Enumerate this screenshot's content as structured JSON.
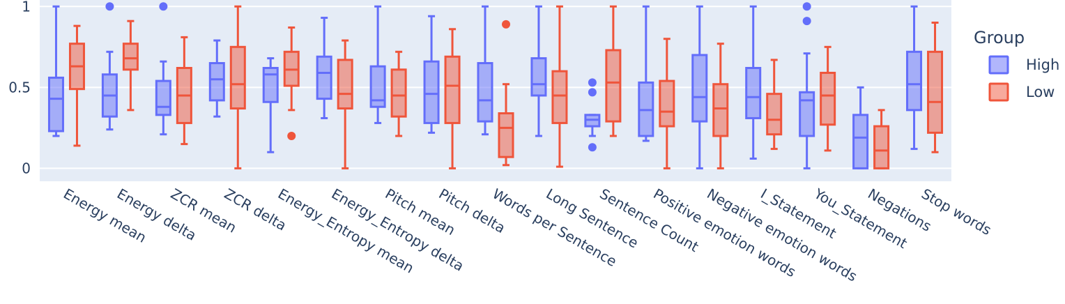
{
  "chart_data": {
    "type": "box",
    "title": "",
    "xlabel": "",
    "ylabel": "",
    "ylim": [
      -0.08,
      1.04
    ],
    "yticks": [
      0,
      0.5,
      1
    ],
    "ytick_labels": [
      "0",
      "0.5",
      "1"
    ],
    "grid": true,
    "legend": {
      "title": "Group",
      "position": "top-right"
    },
    "categories": [
      "Energy mean",
      "Energy delta",
      "ZCR mean",
      "ZCR delta",
      "Energy_Entropy mean",
      "Energy_Entropy delta",
      "Pitch mean",
      "Pitch delta",
      "Words per Sentence",
      "Long Sentence",
      "Sentence Count",
      "Positive emotion words",
      "Negative emotion words",
      "I_Statement",
      "You_Statement",
      "Negations",
      "Stop words"
    ],
    "series": [
      {
        "name": "High",
        "color": "#636efa",
        "fill": "rgba(99,110,250,0.5)",
        "boxes": [
          {
            "min": 0.2,
            "q1": 0.23,
            "median": 0.43,
            "q3": 0.56,
            "max": 1.0,
            "outliers": []
          },
          {
            "min": 0.24,
            "q1": 0.32,
            "median": 0.45,
            "q3": 0.58,
            "max": 0.72,
            "outliers": [
              1.0
            ]
          },
          {
            "min": 0.21,
            "q1": 0.33,
            "median": 0.38,
            "q3": 0.54,
            "max": 0.66,
            "outliers": [
              1.0
            ]
          },
          {
            "min": 0.32,
            "q1": 0.42,
            "median": 0.55,
            "q3": 0.65,
            "max": 0.79,
            "outliers": []
          },
          {
            "min": 0.1,
            "q1": 0.41,
            "median": 0.58,
            "q3": 0.62,
            "max": 0.68,
            "outliers": []
          },
          {
            "min": 0.31,
            "q1": 0.43,
            "median": 0.59,
            "q3": 0.69,
            "max": 0.93,
            "outliers": []
          },
          {
            "min": 0.28,
            "q1": 0.38,
            "median": 0.42,
            "q3": 0.63,
            "max": 1.0,
            "outliers": []
          },
          {
            "min": 0.22,
            "q1": 0.28,
            "median": 0.46,
            "q3": 0.66,
            "max": 0.94,
            "outliers": []
          },
          {
            "min": 0.21,
            "q1": 0.29,
            "median": 0.42,
            "q3": 0.65,
            "max": 1.0,
            "outliers": []
          },
          {
            "min": 0.2,
            "q1": 0.45,
            "median": 0.52,
            "q3": 0.68,
            "max": 1.0,
            "outliers": []
          },
          {
            "min": 0.2,
            "q1": 0.26,
            "median": 0.3,
            "q3": 0.33,
            "max": 0.33,
            "outliers": [
              0.53,
              0.47,
              0.13
            ]
          },
          {
            "min": 0.17,
            "q1": 0.2,
            "median": 0.36,
            "q3": 0.53,
            "max": 1.0,
            "outliers": []
          },
          {
            "min": 0.0,
            "q1": 0.29,
            "median": 0.44,
            "q3": 0.7,
            "max": 1.0,
            "outliers": []
          },
          {
            "min": 0.06,
            "q1": 0.31,
            "median": 0.44,
            "q3": 0.62,
            "max": 1.0,
            "outliers": []
          },
          {
            "min": 0.0,
            "q1": 0.2,
            "median": 0.42,
            "q3": 0.47,
            "max": 0.71,
            "outliers": [
              1.0,
              0.91
            ]
          },
          {
            "min": 0.0,
            "q1": 0.0,
            "median": 0.19,
            "q3": 0.33,
            "max": 0.5,
            "outliers": []
          },
          {
            "min": 0.12,
            "q1": 0.36,
            "median": 0.52,
            "q3": 0.72,
            "max": 1.0,
            "outliers": []
          }
        ]
      },
      {
        "name": "Low",
        "color": "#ef553b",
        "fill": "rgba(239,85,59,0.5)",
        "boxes": [
          {
            "min": 0.14,
            "q1": 0.49,
            "median": 0.63,
            "q3": 0.77,
            "max": 0.88,
            "outliers": []
          },
          {
            "min": 0.36,
            "q1": 0.61,
            "median": 0.68,
            "q3": 0.77,
            "max": 0.91,
            "outliers": []
          },
          {
            "min": 0.15,
            "q1": 0.28,
            "median": 0.45,
            "q3": 0.62,
            "max": 0.81,
            "outliers": []
          },
          {
            "min": 0.0,
            "q1": 0.37,
            "median": 0.52,
            "q3": 0.75,
            "max": 1.0,
            "outliers": []
          },
          {
            "min": 0.36,
            "q1": 0.51,
            "median": 0.61,
            "q3": 0.72,
            "max": 0.87,
            "outliers": [
              0.2
            ]
          },
          {
            "min": 0.0,
            "q1": 0.37,
            "median": 0.46,
            "q3": 0.67,
            "max": 0.79,
            "outliers": []
          },
          {
            "min": 0.2,
            "q1": 0.32,
            "median": 0.45,
            "q3": 0.61,
            "max": 0.72,
            "outliers": []
          },
          {
            "min": 0.0,
            "q1": 0.28,
            "median": 0.51,
            "q3": 0.69,
            "max": 0.86,
            "outliers": []
          },
          {
            "min": 0.02,
            "q1": 0.07,
            "median": 0.25,
            "q3": 0.34,
            "max": 0.52,
            "outliers": [
              0.89
            ]
          },
          {
            "min": 0.01,
            "q1": 0.28,
            "median": 0.45,
            "q3": 0.6,
            "max": 1.0,
            "outliers": []
          },
          {
            "min": 0.2,
            "q1": 0.29,
            "median": 0.53,
            "q3": 0.73,
            "max": 1.0,
            "outliers": []
          },
          {
            "min": 0.0,
            "q1": 0.26,
            "median": 0.35,
            "q3": 0.54,
            "max": 0.8,
            "outliers": []
          },
          {
            "min": 0.0,
            "q1": 0.2,
            "median": 0.37,
            "q3": 0.52,
            "max": 0.77,
            "outliers": []
          },
          {
            "min": 0.12,
            "q1": 0.21,
            "median": 0.3,
            "q3": 0.46,
            "max": 0.67,
            "outliers": []
          },
          {
            "min": 0.11,
            "q1": 0.27,
            "median": 0.45,
            "q3": 0.59,
            "max": 0.75,
            "outliers": []
          },
          {
            "min": 0.0,
            "q1": 0.0,
            "median": 0.11,
            "q3": 0.26,
            "max": 0.36,
            "outliers": []
          },
          {
            "min": 0.1,
            "q1": 0.22,
            "median": 0.41,
            "q3": 0.72,
            "max": 0.9,
            "outliers": []
          }
        ]
      }
    ]
  }
}
